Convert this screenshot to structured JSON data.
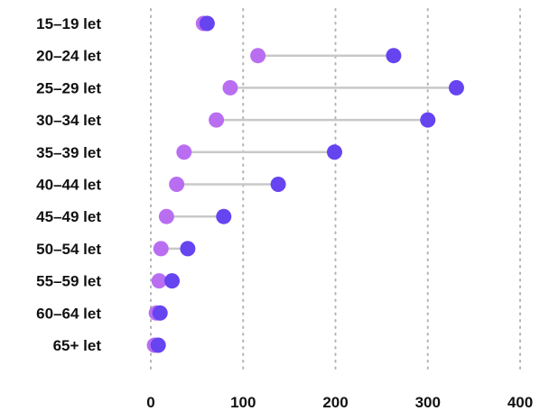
{
  "chart_data": {
    "type": "dot-range",
    "categories": [
      "15–19 let",
      "20–24 let",
      "25–29 let",
      "30–34 let",
      "35–39 let",
      "40–44 let",
      "45–49 let",
      "50–54 let",
      "55–59 let",
      "60–64 let",
      "65+ let"
    ],
    "series": [
      {
        "color": "#b96ef2",
        "values": [
          57,
          116,
          86,
          71,
          36,
          28,
          17,
          11,
          9,
          6,
          4
        ]
      },
      {
        "color": "#6644f0",
        "values": [
          61,
          263,
          331,
          300,
          199,
          138,
          79,
          40,
          23,
          10,
          8
        ]
      }
    ],
    "xticks": [
      0,
      100,
      200,
      300,
      400
    ],
    "xlim": [
      0,
      400
    ],
    "grid": "vertical-dotted",
    "connector_color": "#c8c8c8"
  }
}
